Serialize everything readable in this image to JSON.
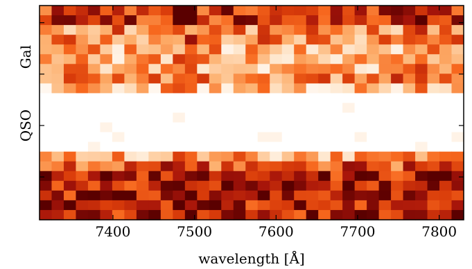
{
  "chart_data": {
    "type": "heatmap",
    "title": "",
    "xlabel": "wavelength [Å]",
    "ylabel": "",
    "xlim": [
      7310,
      7830
    ],
    "x_ticks": [
      {
        "value": 7400,
        "label": "7400"
      },
      {
        "value": 7500,
        "label": "7500"
      },
      {
        "value": 7600,
        "label": "7600"
      },
      {
        "value": 7700,
        "label": "7700"
      },
      {
        "value": 7800,
        "label": "7800"
      }
    ],
    "y_labels": [
      {
        "label": "Gal",
        "frac": 0.24
      },
      {
        "label": "QSO",
        "frac": 0.56
      }
    ],
    "colormap": "white-orange-red-darkred (gist_heat_r style)",
    "columns": 35,
    "rows": 22,
    "grid": false
  }
}
